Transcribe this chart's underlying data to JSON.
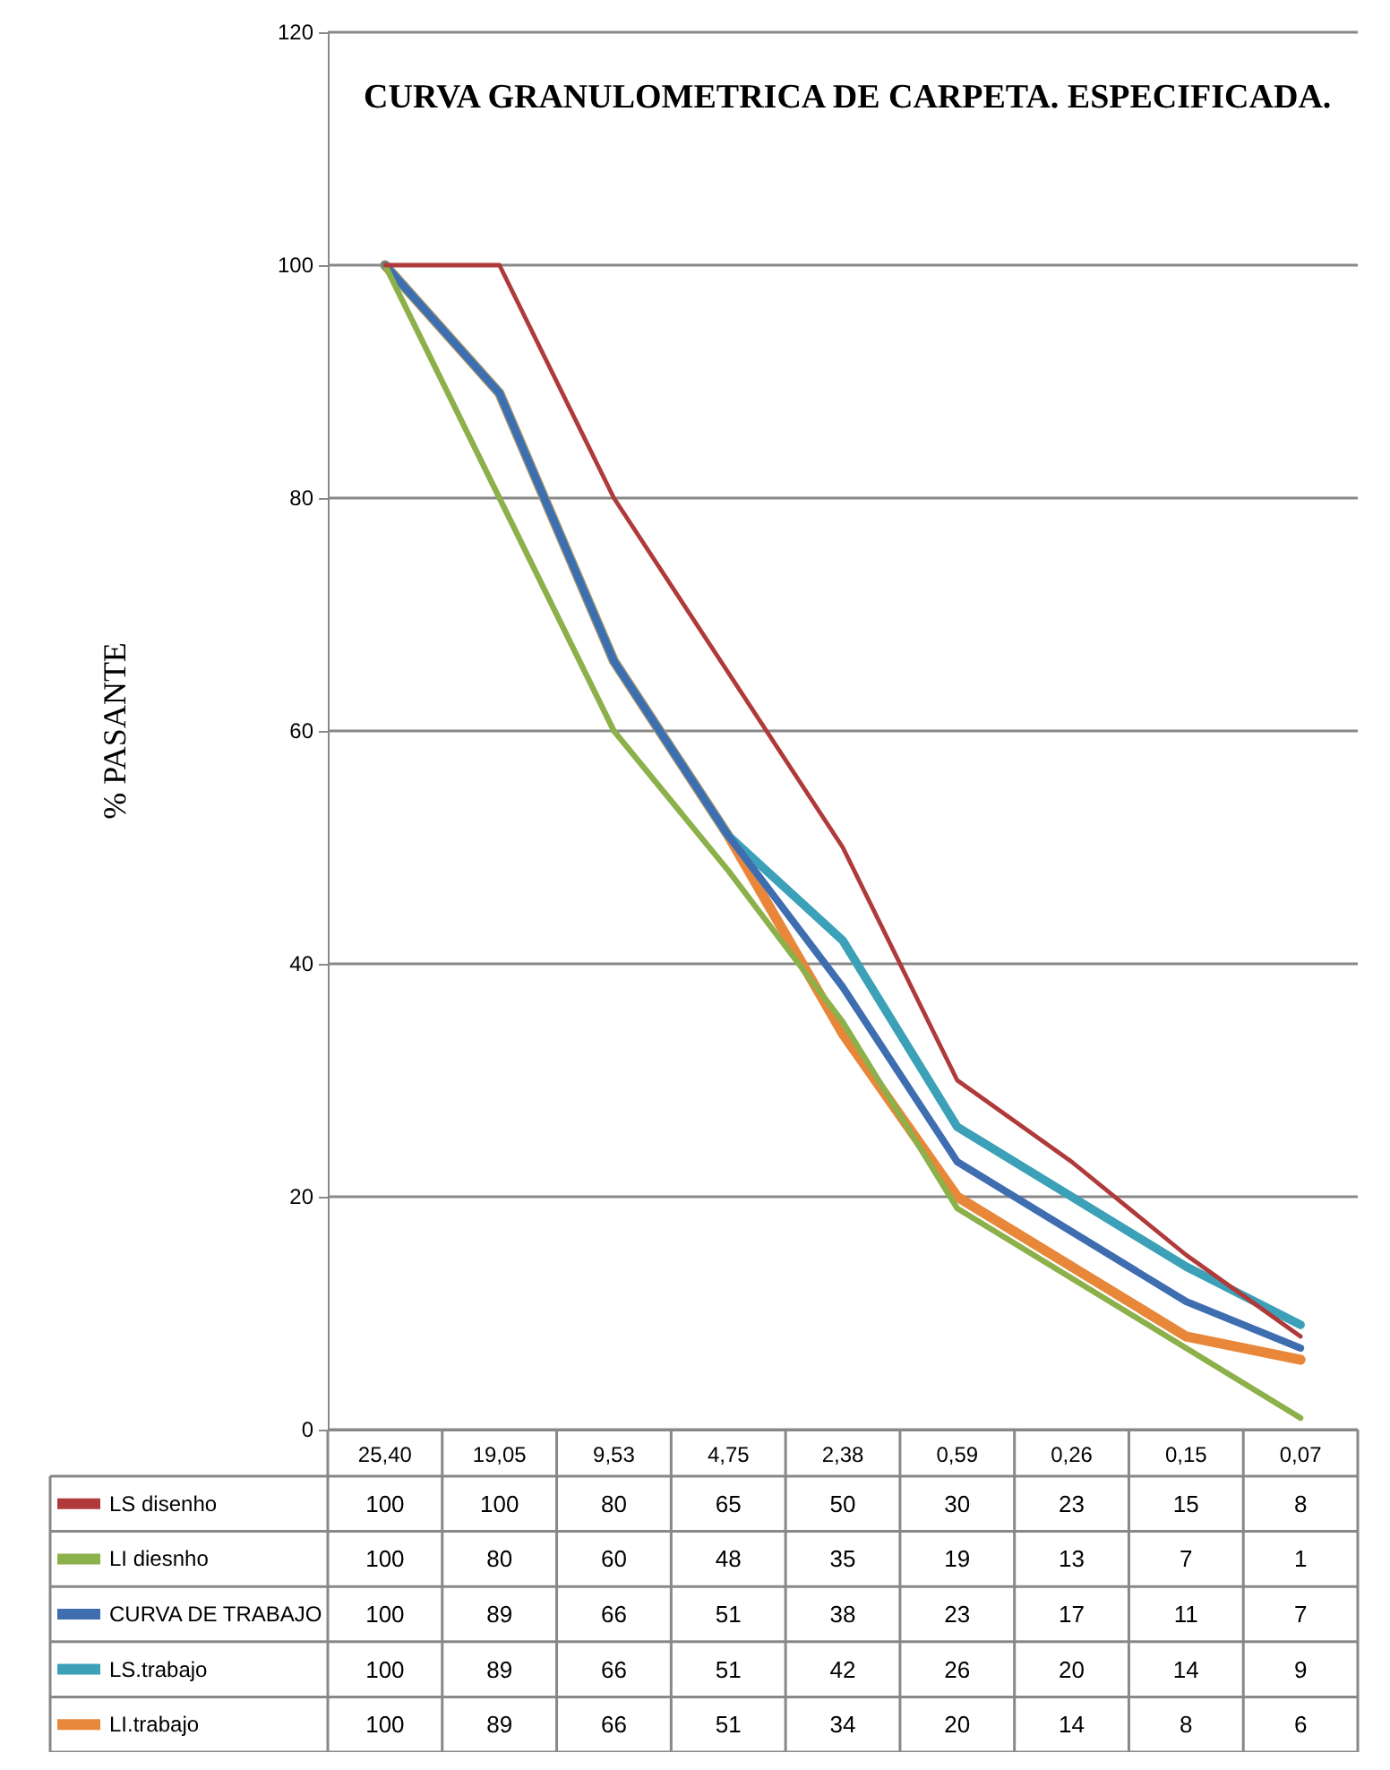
{
  "chart_data": {
    "type": "line",
    "title": "CURVA GRANULOMETRICA DE CARPETA. ESPECIFICADA.",
    "ylabel": "% PASANTE",
    "categories": [
      "25,40",
      "19,05",
      "9,53",
      "4,75",
      "2,38",
      "0,59",
      "0,26",
      "0,15",
      "0,07"
    ],
    "series": [
      {
        "name": "LS disenho",
        "color": "#b03a3a",
        "values": [
          100,
          100,
          80,
          65,
          50,
          30,
          23,
          15,
          8
        ]
      },
      {
        "name": "LI diesnho",
        "color": "#8cb04a",
        "values": [
          100,
          80,
          60,
          48,
          35,
          19,
          13,
          7,
          1
        ]
      },
      {
        "name": "CURVA DE TRABAJO",
        "color": "#3e6db0",
        "values": [
          100,
          89,
          66,
          51,
          38,
          23,
          17,
          11,
          7
        ]
      },
      {
        "name": "LS.trabajo",
        "color": "#3ba0b8",
        "values": [
          100,
          89,
          66,
          51,
          42,
          26,
          20,
          14,
          9
        ]
      },
      {
        "name": "LI.trabajo",
        "color": "#e8873a",
        "values": [
          100,
          89,
          66,
          51,
          34,
          20,
          14,
          8,
          6
        ]
      }
    ],
    "ylim": [
      0,
      120
    ],
    "yticks": [
      0,
      20,
      40,
      60,
      80,
      100,
      120
    ],
    "grid": "y",
    "legend": "bottom",
    "marker": "none",
    "line_style": "solid",
    "data_labels": true
  }
}
